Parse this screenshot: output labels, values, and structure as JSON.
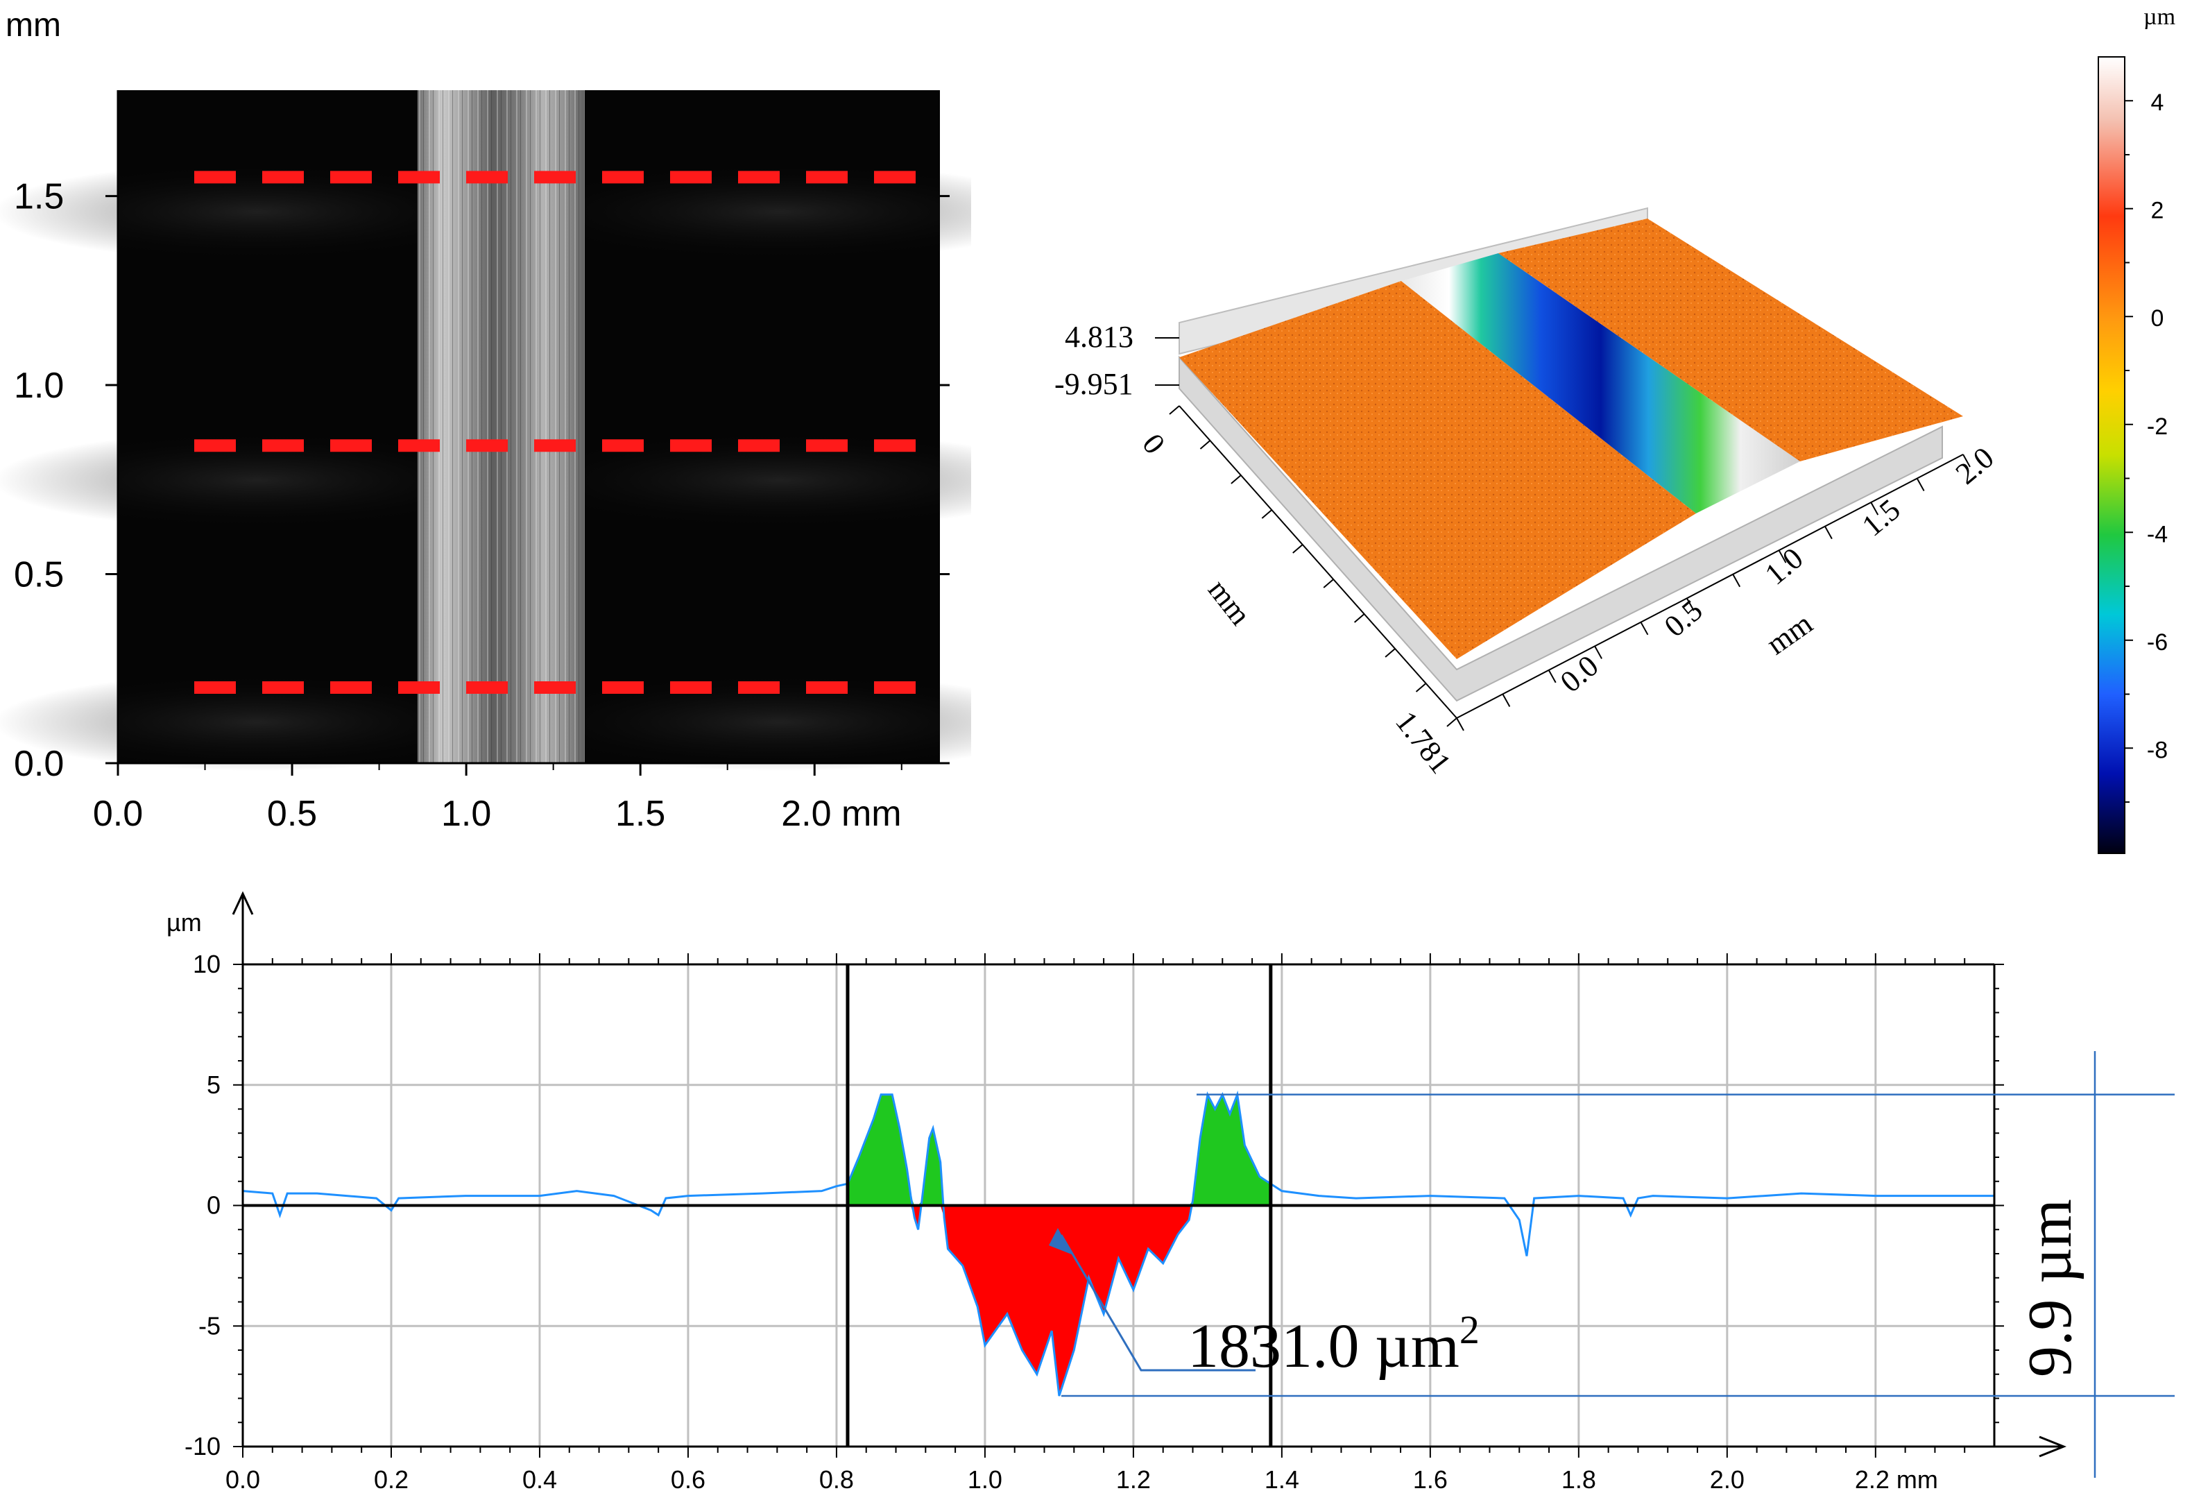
{
  "chart_data": [
    {
      "type": "heatmap",
      "panel": "2d-intensity-map",
      "unit_label": "mm",
      "x_ticks": [
        "0.0",
        "0.5",
        "1.0",
        "1.5",
        "2.0 mm"
      ],
      "y_ticks": [
        "0.0",
        "0.5",
        "1.0",
        "1.5"
      ],
      "xlim": [
        0,
        2.36
      ],
      "ylim": [
        0,
        1.78
      ],
      "wear_track_x_mm": [
        0.86,
        1.34
      ],
      "profile_lines_y_mm": [
        0.2,
        0.84,
        1.55
      ],
      "colors": {
        "background": "#050505",
        "track": "#8f8f8f",
        "profile_line": "#ff1a1a"
      }
    },
    {
      "type": "surface",
      "panel": "3d-topography",
      "z_max_label": "4.813",
      "z_min_label": "-9.951",
      "y_start_label": "0",
      "y_end_label": "1.781",
      "y_axis_label": "mm",
      "x_axis_label": "mm",
      "x_ticks": [
        "0.0",
        "0.5",
        "1.0",
        "1.5",
        "2.0"
      ],
      "colorbar": {
        "unit": "µm",
        "ticks": [
          "4",
          "2",
          "0",
          "-2",
          "-4",
          "-6",
          "-8"
        ],
        "range": [
          -9.951,
          4.813
        ]
      }
    },
    {
      "type": "line",
      "panel": "cross-section-profile",
      "ylabel": "µm",
      "y_ticks": [
        "10",
        "5",
        "0",
        "-5",
        "-10"
      ],
      "ylim": [
        -10,
        10
      ],
      "x_ticks": [
        "0.0",
        "0.2",
        "0.4",
        "0.6",
        "0.8",
        "1.0",
        "1.2",
        "1.4",
        "1.6",
        "1.8",
        "2.0",
        "2.2 mm"
      ],
      "xlim": [
        0,
        2.36
      ],
      "cursor_positions_mm": [
        0.815,
        1.385
      ],
      "area_annotation": "1831.0 µm",
      "area_superscript": "2",
      "depth_annotation": "9.9 µm",
      "peak_max_um": 4.6,
      "valley_min_um": -7.9,
      "series": [
        {
          "x": [
            0.0,
            0.04,
            0.05,
            0.06,
            0.1,
            0.18,
            0.2,
            0.21,
            0.3,
            0.4,
            0.45,
            0.5,
            0.55,
            0.56,
            0.57,
            0.6,
            0.7,
            0.78,
            0.8,
            0.815,
            0.83,
            0.85,
            0.86,
            0.875,
            0.885,
            0.895,
            0.9,
            0.905,
            0.91,
            0.915,
            0.925,
            0.93,
            0.94,
            0.945,
            0.95,
            0.97,
            0.99,
            1.0,
            1.03,
            1.05,
            1.07,
            1.09,
            1.1,
            1.12,
            1.14,
            1.16,
            1.18,
            1.2,
            1.22,
            1.24,
            1.26,
            1.275,
            1.28,
            1.29,
            1.3,
            1.31,
            1.32,
            1.33,
            1.34,
            1.35,
            1.37,
            1.385,
            1.4,
            1.45,
            1.5,
            1.6,
            1.7,
            1.72,
            1.73,
            1.74,
            1.8,
            1.86,
            1.87,
            1.88,
            1.9,
            2.0,
            2.1,
            2.2,
            2.3,
            2.36
          ],
          "y": [
            0.6,
            0.5,
            -0.4,
            0.5,
            0.5,
            0.3,
            -0.2,
            0.3,
            0.4,
            0.4,
            0.6,
            0.4,
            -0.2,
            -0.4,
            0.3,
            0.4,
            0.5,
            0.6,
            0.8,
            0.9,
            2.0,
            3.6,
            4.6,
            4.6,
            3.2,
            1.5,
            0.4,
            -0.5,
            -1.0,
            0.2,
            2.8,
            3.2,
            1.8,
            -0.5,
            -1.8,
            -2.5,
            -4.2,
            -5.8,
            -4.5,
            -6.0,
            -7.0,
            -5.2,
            -7.9,
            -6.0,
            -3.0,
            -4.5,
            -2.2,
            -3.5,
            -1.8,
            -2.4,
            -1.2,
            -0.6,
            0.2,
            2.8,
            4.6,
            4.0,
            4.6,
            3.8,
            4.6,
            2.5,
            1.2,
            0.9,
            0.6,
            0.4,
            0.3,
            0.4,
            0.3,
            -0.6,
            -2.1,
            0.3,
            0.4,
            0.3,
            -0.4,
            0.3,
            0.4,
            0.3,
            0.5,
            0.4,
            0.4,
            0.4
          ]
        }
      ],
      "colors": {
        "line": "#1e90ff",
        "pileup": "#1fc81f",
        "wear": "#ff0000",
        "annotation": "#2f6fbf",
        "cursor": "#000000",
        "grid": "#c0c0c0"
      }
    }
  ]
}
